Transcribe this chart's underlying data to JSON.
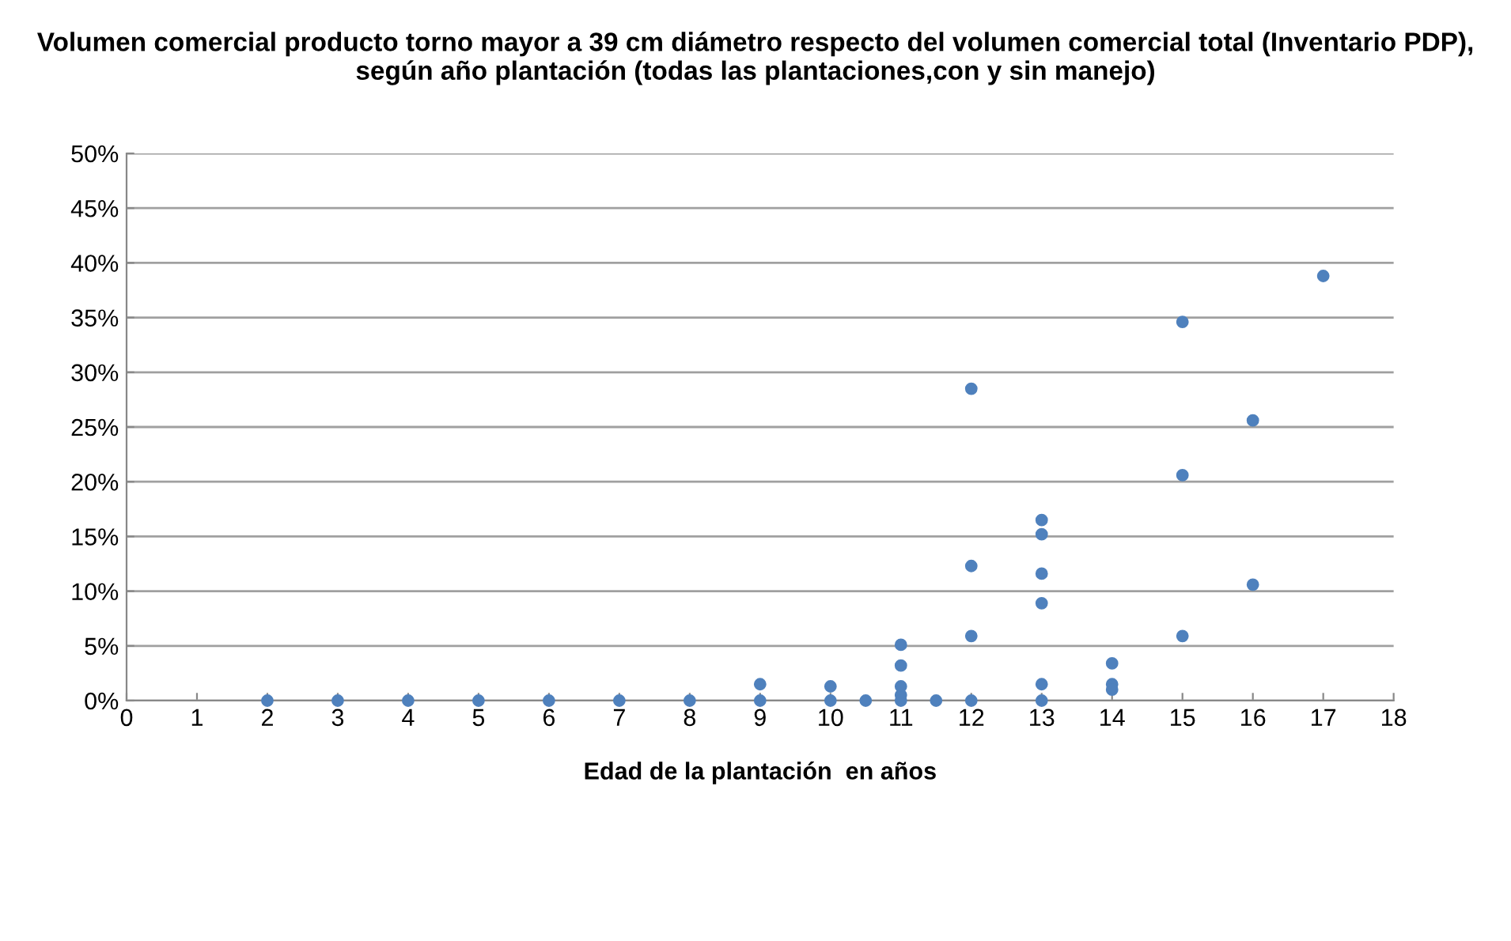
{
  "chart_data": {
    "type": "scatter",
    "title": "Volumen comercial producto torno mayor a 39 cm diámetro respecto del volumen comercial total (Inventario PDP), según año plantación (todas las plantaciones,con y sin manejo)",
    "xlabel": "Edad de la plantación  en años",
    "x": [
      2,
      3,
      4,
      5,
      6,
      7,
      8,
      9,
      9,
      10,
      10,
      10.5,
      11,
      11,
      11,
      11,
      11,
      11.5,
      12,
      12,
      12,
      12,
      13,
      13,
      13,
      13,
      13,
      13,
      14,
      14,
      14,
      15,
      15,
      15,
      16,
      16,
      17
    ],
    "values": [
      0,
      0,
      0,
      0,
      0,
      0,
      0,
      0,
      1.5,
      0,
      1.3,
      0,
      5.1,
      3.2,
      1.3,
      0.5,
      0,
      0,
      28.5,
      12.3,
      5.9,
      0,
      16.5,
      15.2,
      11.6,
      8.9,
      1.5,
      0,
      3.4,
      1.5,
      1.0,
      34.6,
      20.6,
      5.9,
      25.6,
      10.6,
      38.8
    ],
    "color": "#4f81bd",
    "marker": "circle",
    "grid": "y",
    "legend": false,
    "xlim": [
      0,
      18
    ],
    "xticks": [
      0,
      1,
      2,
      3,
      4,
      5,
      6,
      7,
      8,
      9,
      10,
      11,
      12,
      13,
      14,
      15,
      16,
      17,
      18
    ],
    "ylim": [
      0,
      50
    ],
    "yticks": [
      {
        "value": 0,
        "label": "0%"
      },
      {
        "value": 5,
        "label": "5%"
      },
      {
        "value": 10,
        "label": "10%"
      },
      {
        "value": 15,
        "label": "15%"
      },
      {
        "value": 20,
        "label": "20%"
      },
      {
        "value": 25,
        "label": "25%"
      },
      {
        "value": 30,
        "label": "30%"
      },
      {
        "value": 35,
        "label": "35%"
      },
      {
        "value": 40,
        "label": "40%"
      },
      {
        "value": 45,
        "label": "45%"
      },
      {
        "value": 50,
        "label": "50%"
      }
    ]
  }
}
